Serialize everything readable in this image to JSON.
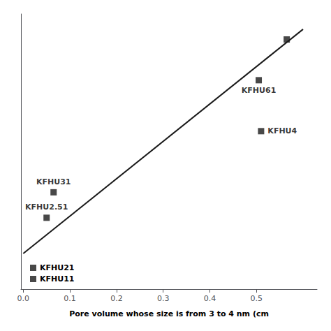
{
  "chart_data": {
    "type": "scatter",
    "xlabel": "Pore volume whose size is from 3 to 4 nm (cm",
    "x": [
      0.05,
      0.065,
      0.505,
      0.51,
      0.565
    ],
    "values": [
      0.28,
      0.38,
      0.82,
      0.62,
      0.98
    ],
    "color": "#1a1a1a",
    "marker": "square",
    "annotations": [
      {
        "text": "KFHU2.51",
        "x": 0.05,
        "y": 0.28
      },
      {
        "text": "KFHU31",
        "x": 0.065,
        "y": 0.38
      },
      {
        "text": "KFHU61",
        "x": 0.505,
        "y": 0.82
      },
      {
        "text": "KFHU4",
        "x": 0.51,
        "y": 0.62
      }
    ],
    "trendline": {
      "type": "line",
      "x": [
        0.0,
        0.6
      ],
      "values": [
        0.14,
        1.02
      ],
      "color": "#1a1a1a"
    },
    "legend_items": [
      "KFHU21",
      "KFHU11"
    ],
    "legend": "lower left",
    "xlim": [
      -0.005,
      0.63
    ],
    "ylim": [
      0.0,
      1.08
    ],
    "xticks": [
      {
        "value": 0.0,
        "label": "0.0"
      },
      0.1,
      0.2,
      0.3,
      0.4,
      0.5
    ],
    "grid": false,
    "tick_labels": "x"
  }
}
